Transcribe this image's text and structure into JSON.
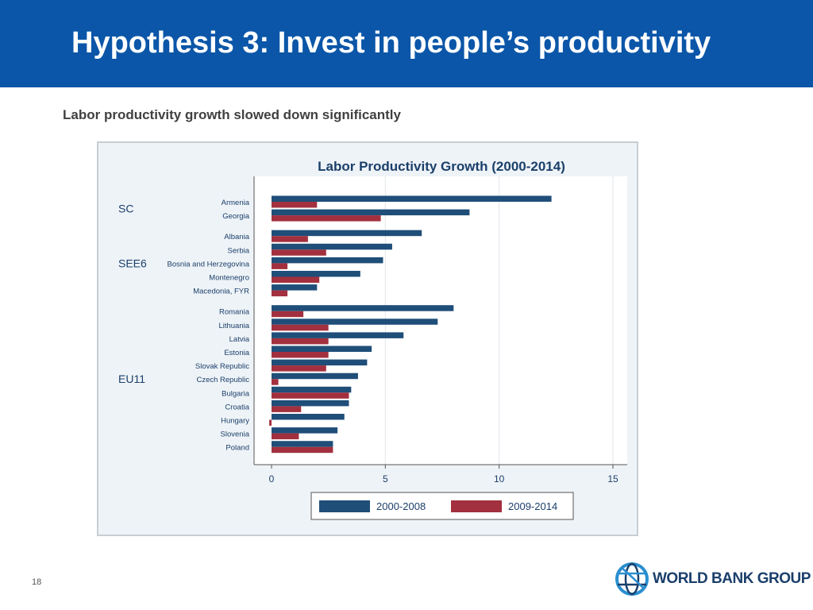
{
  "slide": {
    "title": "Hypothesis 3: Invest in people’s productivity",
    "subtitle": "Labor productivity growth slowed down significantly",
    "page_number": "18",
    "logo_text": "WORLD BANK GROUP"
  },
  "colors": {
    "header_bg": "#0b56a8",
    "series_2000_2008": "#1f4e79",
    "series_2009_2014": "#a3303e"
  },
  "chart_data": {
    "type": "bar",
    "orientation": "horizontal",
    "title": "Labor Productivity Growth (2000-2014)",
    "xlim": [
      0,
      15
    ],
    "xticks": [
      0,
      5,
      10,
      15
    ],
    "grid": true,
    "legend_position": "bottom",
    "groups": [
      {
        "label": "SC",
        "countries": [
          "Armenia",
          "Georgia"
        ]
      },
      {
        "label": "SEE6",
        "countries": [
          "Albania",
          "Serbia",
          "Bosnia and Herzegovina",
          "Montenegro",
          "Macedonia, FYR"
        ]
      },
      {
        "label": "EU11",
        "countries": [
          "Romania",
          "Lithuania",
          "Latvia",
          "Estonia",
          "Slovak Republic",
          "Czech Republic",
          "Bulgaria",
          "Croatia",
          "Hungary",
          "Slovenia",
          "Poland"
        ]
      }
    ],
    "categories": [
      "Armenia",
      "Georgia",
      "Albania",
      "Serbia",
      "Bosnia and Herzegovina",
      "Montenegro",
      "Macedonia, FYR",
      "Romania",
      "Lithuania",
      "Latvia",
      "Estonia",
      "Slovak Republic",
      "Czech Republic",
      "Bulgaria",
      "Croatia",
      "Hungary",
      "Slovenia",
      "Poland"
    ],
    "series": [
      {
        "name": "2000-2008",
        "values": [
          12.3,
          8.7,
          6.6,
          5.3,
          4.9,
          3.9,
          2.0,
          8.0,
          7.3,
          5.8,
          4.4,
          4.2,
          3.8,
          3.5,
          3.4,
          3.2,
          2.9,
          2.7
        ]
      },
      {
        "name": "2009-2014",
        "values": [
          2.0,
          4.8,
          1.6,
          2.4,
          0.7,
          2.1,
          0.7,
          1.4,
          2.5,
          2.5,
          2.5,
          2.4,
          0.3,
          3.4,
          1.3,
          -0.1,
          1.2,
          2.7
        ]
      }
    ]
  }
}
